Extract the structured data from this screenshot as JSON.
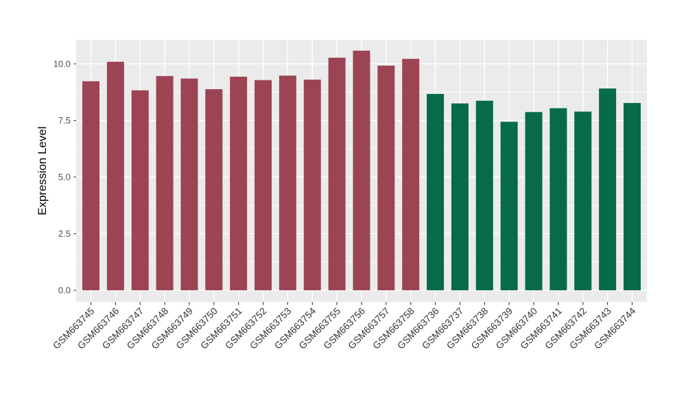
{
  "chart_data": {
    "type": "bar",
    "title": "",
    "xlabel": "",
    "ylabel": "Expression Level",
    "ylim": [
      -0.53,
      11.07
    ],
    "yticks": [
      0,
      2.5,
      5.0,
      7.5,
      10.0
    ],
    "ytick_labels": [
      "0.0",
      "2.5",
      "5.0",
      "7.5",
      "10.0"
    ],
    "minor_gridlines": [
      1.25,
      3.75,
      6.25,
      8.75
    ],
    "grid": "on",
    "legend_position": "none",
    "colors": {
      "figure_background": "#FFFFFF",
      "panel_background": "#EBEBEB",
      "gridline": "#FFFFFF",
      "tick_mark": "#333333",
      "group1_fill": "#9C4454",
      "group2_fill": "#066A4B"
    },
    "categories": [
      "GSM663745",
      "GSM663746",
      "GSM663747",
      "GSM663748",
      "GSM663749",
      "GSM663750",
      "GSM663751",
      "GSM663752",
      "GSM663753",
      "GSM663754",
      "GSM663755",
      "GSM663756",
      "GSM663757",
      "GSM663758",
      "GSM663736",
      "GSM663737",
      "GSM663738",
      "GSM663739",
      "GSM663740",
      "GSM663741",
      "GSM663742",
      "GSM663743",
      "GSM663744"
    ],
    "values": [
      9.23,
      10.09,
      8.83,
      9.46,
      9.35,
      8.88,
      9.43,
      9.28,
      9.48,
      9.3,
      10.27,
      10.58,
      9.92,
      10.22,
      8.67,
      8.25,
      8.37,
      7.44,
      7.87,
      8.04,
      7.89,
      8.91,
      8.27
    ],
    "bar_groups": [
      "group1",
      "group1",
      "group1",
      "group1",
      "group1",
      "group1",
      "group1",
      "group1",
      "group1",
      "group1",
      "group1",
      "group1",
      "group1",
      "group1",
      "group2",
      "group2",
      "group2",
      "group2",
      "group2",
      "group2",
      "group2",
      "group2",
      "group2"
    ]
  }
}
